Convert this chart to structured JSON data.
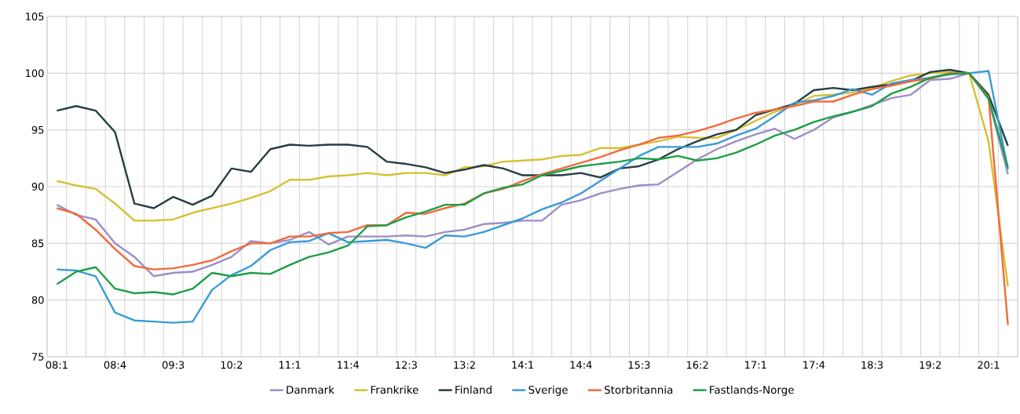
{
  "chart_data": {
    "type": "line",
    "categories": [
      "08:1",
      null,
      null,
      "08:4",
      null,
      null,
      "09:3",
      null,
      null,
      "10:2",
      null,
      null,
      "11:1",
      null,
      null,
      "11:4",
      null,
      null,
      "12:3",
      null,
      null,
      "13:2",
      null,
      null,
      "14:1",
      null,
      null,
      "14:4",
      null,
      null,
      "15:3",
      null,
      null,
      "16:2",
      null,
      null,
      "17:1",
      null,
      null,
      "17:4",
      null,
      null,
      "18:3",
      null,
      null,
      "19:2",
      null,
      null,
      "20:1",
      null
    ],
    "ylim": [
      75,
      105
    ],
    "yticks": [
      75,
      80,
      85,
      90,
      95,
      100,
      105
    ],
    "grid": true,
    "legend": "bottom",
    "line_style": "solid",
    "series": [
      {
        "name": "Danmark",
        "color": "#9d8ec6",
        "values": [
          88.4,
          87.5,
          87.1,
          85.0,
          83.8,
          82.1,
          82.4,
          82.5,
          83.1,
          83.8,
          85.2,
          85.0,
          85.3,
          86.0,
          84.9,
          85.6,
          85.6,
          85.6,
          85.7,
          85.6,
          86.0,
          86.2,
          86.7,
          86.8,
          87.0,
          87.0,
          88.4,
          88.8,
          89.4,
          89.8,
          90.1,
          90.2,
          91.3,
          92.4,
          93.3,
          94.0,
          94.6,
          95.1,
          94.2,
          95.0,
          96.1,
          96.6,
          97.2,
          97.8,
          98.1,
          99.4,
          99.5,
          100.0,
          97.7,
          91.1
        ]
      },
      {
        "name": "Frankrike",
        "color": "#d5c132",
        "values": [
          90.5,
          90.1,
          89.8,
          88.5,
          87.0,
          87.0,
          87.1,
          87.7,
          88.1,
          88.5,
          89.0,
          89.6,
          90.6,
          90.6,
          90.9,
          91.0,
          91.2,
          91.0,
          91.2,
          91.2,
          91.0,
          91.7,
          91.8,
          92.2,
          92.3,
          92.4,
          92.7,
          92.8,
          93.4,
          93.4,
          93.7,
          94.0,
          94.4,
          94.3,
          94.3,
          95.0,
          95.8,
          96.6,
          97.2,
          98.0,
          98.1,
          98.3,
          98.7,
          99.3,
          99.8,
          100.0,
          100.1,
          100.0,
          94.0,
          81.2
        ]
      },
      {
        "name": "Finland",
        "color": "#243e43",
        "values": [
          96.7,
          97.1,
          96.7,
          94.8,
          88.5,
          88.1,
          89.1,
          88.4,
          89.2,
          91.6,
          91.3,
          93.3,
          93.7,
          93.6,
          93.7,
          93.7,
          93.5,
          92.2,
          92.0,
          91.7,
          91.2,
          91.5,
          91.9,
          91.6,
          91.0,
          91.0,
          91.0,
          91.2,
          90.8,
          91.6,
          91.8,
          92.4,
          93.3,
          94.0,
          94.6,
          95.0,
          96.3,
          96.8,
          97.3,
          98.5,
          98.7,
          98.5,
          98.8,
          99.0,
          99.3,
          100.1,
          100.3,
          100.0,
          98.1,
          93.6
        ]
      },
      {
        "name": "Sverige",
        "color": "#3a9bd8",
        "values": [
          82.7,
          82.6,
          82.1,
          78.9,
          78.2,
          78.1,
          78.0,
          78.1,
          80.9,
          82.2,
          83.0,
          84.4,
          85.1,
          85.2,
          85.9,
          85.1,
          85.2,
          85.3,
          85.0,
          84.6,
          85.7,
          85.6,
          86.0,
          86.6,
          87.2,
          88.0,
          88.6,
          89.4,
          90.5,
          91.6,
          92.7,
          93.5,
          93.5,
          93.5,
          93.8,
          94.5,
          95.1,
          96.2,
          97.4,
          97.6,
          98.0,
          98.6,
          98.1,
          99.1,
          99.4,
          99.6,
          100.0,
          100.0,
          100.2,
          91.5
        ]
      },
      {
        "name": "Storbritannia",
        "color": "#f26a3b",
        "values": [
          88.1,
          87.6,
          86.2,
          84.5,
          83.0,
          82.7,
          82.8,
          83.1,
          83.5,
          84.3,
          85.0,
          85.0,
          85.6,
          85.6,
          85.9,
          86.0,
          86.6,
          86.6,
          87.7,
          87.6,
          88.1,
          88.5,
          89.4,
          89.8,
          90.5,
          91.1,
          91.6,
          92.1,
          92.6,
          93.2,
          93.7,
          94.3,
          94.5,
          94.9,
          95.4,
          96.0,
          96.5,
          96.8,
          97.1,
          97.5,
          97.5,
          98.1,
          98.6,
          98.9,
          99.3,
          99.5,
          100.0,
          100.0,
          97.9,
          77.8
        ]
      },
      {
        "name": "Fastlands-Norge",
        "color": "#1f9e48",
        "values": [
          81.4,
          82.5,
          82.9,
          81.0,
          80.6,
          80.7,
          80.5,
          81.0,
          82.4,
          82.1,
          82.4,
          82.3,
          83.1,
          83.8,
          84.2,
          84.8,
          86.5,
          86.6,
          87.3,
          87.8,
          88.4,
          88.4,
          89.4,
          89.9,
          90.2,
          91.0,
          91.4,
          91.8,
          92.0,
          92.2,
          92.5,
          92.4,
          92.7,
          92.3,
          92.5,
          93.0,
          93.7,
          94.5,
          95.0,
          95.7,
          96.2,
          96.6,
          97.1,
          98.2,
          98.8,
          99.6,
          99.9,
          100.0,
          97.8,
          91.7
        ]
      }
    ]
  }
}
